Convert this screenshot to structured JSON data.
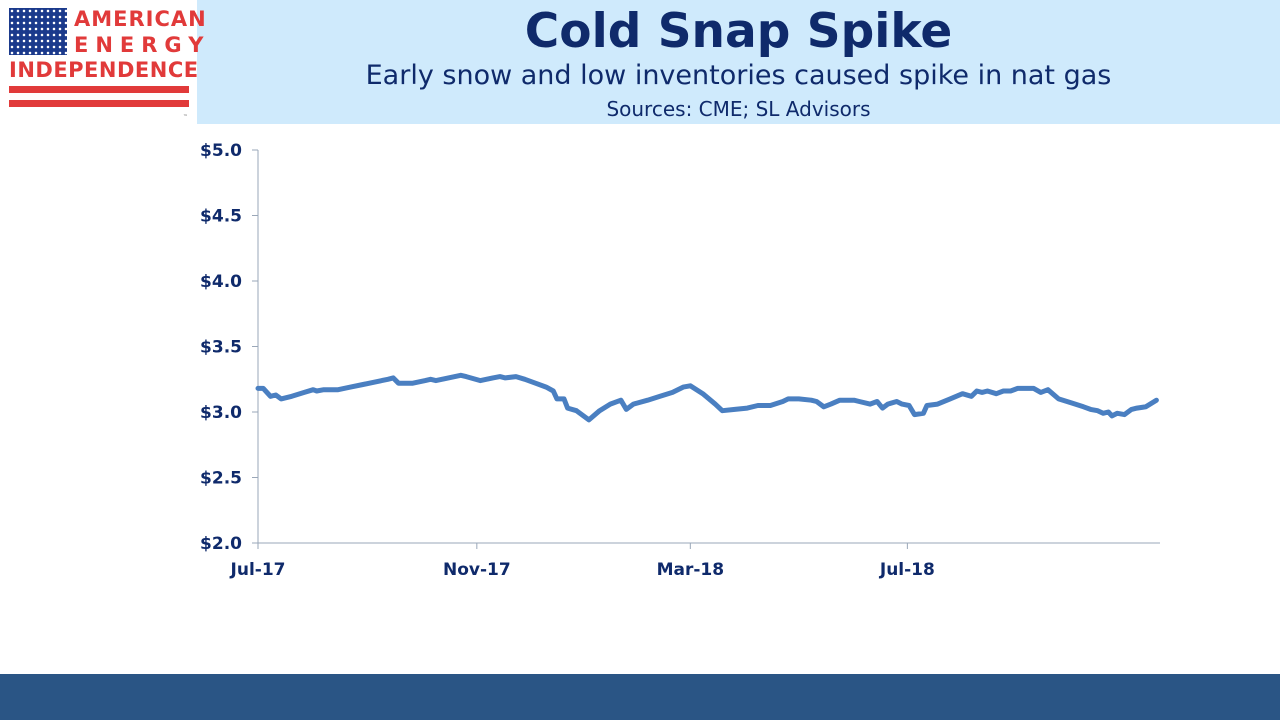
{
  "logo": {
    "line1": "AMERICAN",
    "line2": "ENERGY",
    "line3": "INDEPENDENCE",
    "tm": "™",
    "colors": {
      "red": "#e13a3a",
      "blue": "#1b3a8c"
    }
  },
  "header": {
    "title": "Cold Snap Spike",
    "subtitle": "Early snow and low inventories caused spike in nat gas",
    "sources": "Sources: CME; SL Advisors"
  },
  "chart_data": {
    "type": "line",
    "title": "Cold Snap Spike",
    "subtitle": "Early snow and low inventories caused spike in nat gas",
    "xlabel": "",
    "ylabel": "",
    "ylim": [
      2.0,
      5.0
    ],
    "yticks": [
      2.0,
      2.5,
      3.0,
      3.5,
      4.0,
      4.5,
      5.0
    ],
    "ytick_labels": [
      "$2.0",
      "$2.5",
      "$3.0",
      "$3.5",
      "$4.0",
      "$4.5",
      "$5.0"
    ],
    "xlim": [
      "2017-07-01",
      "2018-11-20"
    ],
    "xticks": [
      "2017-07-01",
      "2017-11-01",
      "2018-03-01",
      "2018-07-01"
    ],
    "xtick_labels": [
      "Jul-17",
      "Nov-17",
      "Mar-18",
      "Jul-18"
    ],
    "grid": false,
    "line_color": "#4a7fc1",
    "series": [
      {
        "name": "",
        "points": [
          [
            "2017-07-01",
            3.18
          ],
          [
            "2017-07-04",
            3.18
          ],
          [
            "2017-07-08",
            3.12
          ],
          [
            "2017-07-11",
            3.13
          ],
          [
            "2017-07-14",
            3.1
          ],
          [
            "2017-07-20",
            3.12
          ],
          [
            "2017-07-27",
            3.15
          ],
          [
            "2017-08-01",
            3.17
          ],
          [
            "2017-08-03",
            3.16
          ],
          [
            "2017-08-07",
            3.17
          ],
          [
            "2017-08-15",
            3.17
          ],
          [
            "2017-08-22",
            3.19
          ],
          [
            "2017-08-29",
            3.21
          ],
          [
            "2017-09-05",
            3.23
          ],
          [
            "2017-09-12",
            3.25
          ],
          [
            "2017-09-15",
            3.26
          ],
          [
            "2017-09-18",
            3.22
          ],
          [
            "2017-09-26",
            3.22
          ],
          [
            "2017-10-03",
            3.24
          ],
          [
            "2017-10-06",
            3.25
          ],
          [
            "2017-10-09",
            3.24
          ],
          [
            "2017-10-16",
            3.26
          ],
          [
            "2017-10-23",
            3.28
          ],
          [
            "2017-10-26",
            3.27
          ],
          [
            "2017-11-03",
            3.24
          ],
          [
            "2017-11-10",
            3.26
          ],
          [
            "2017-11-14",
            3.27
          ],
          [
            "2017-11-17",
            3.26
          ],
          [
            "2017-11-23",
            3.27
          ],
          [
            "2017-11-28",
            3.25
          ],
          [
            "2017-12-04",
            3.22
          ],
          [
            "2017-12-10",
            3.19
          ],
          [
            "2017-12-14",
            3.16
          ],
          [
            "2017-12-16",
            3.1
          ],
          [
            "2017-12-20",
            3.1
          ],
          [
            "2017-12-22",
            3.03
          ],
          [
            "2017-12-27",
            3.01
          ],
          [
            "2018-01-03",
            2.94
          ],
          [
            "2018-01-09",
            3.01
          ],
          [
            "2018-01-15",
            3.06
          ],
          [
            "2018-01-21",
            3.09
          ],
          [
            "2018-01-24",
            3.02
          ],
          [
            "2018-01-28",
            3.06
          ],
          [
            "2018-02-05",
            3.09
          ],
          [
            "2018-02-12",
            3.12
          ],
          [
            "2018-02-19",
            3.15
          ],
          [
            "2018-02-25",
            3.19
          ],
          [
            "2018-03-01",
            3.2
          ],
          [
            "2018-03-08",
            3.14
          ],
          [
            "2018-03-15",
            3.06
          ],
          [
            "2018-03-19",
            3.01
          ],
          [
            "2018-03-26",
            3.02
          ],
          [
            "2018-04-02",
            3.03
          ],
          [
            "2018-04-08",
            3.05
          ],
          [
            "2018-04-15",
            3.05
          ],
          [
            "2018-04-22",
            3.08
          ],
          [
            "2018-04-25",
            3.1
          ],
          [
            "2018-05-01",
            3.1
          ],
          [
            "2018-05-08",
            3.09
          ],
          [
            "2018-05-11",
            3.08
          ],
          [
            "2018-05-15",
            3.04
          ],
          [
            "2018-05-19",
            3.06
          ],
          [
            "2018-05-24",
            3.09
          ],
          [
            "2018-06-01",
            3.09
          ],
          [
            "2018-06-04",
            3.08
          ],
          [
            "2018-06-10",
            3.06
          ],
          [
            "2018-06-14",
            3.08
          ],
          [
            "2018-06-17",
            3.03
          ],
          [
            "2018-06-20",
            3.06
          ],
          [
            "2018-06-25",
            3.08
          ],
          [
            "2018-06-28",
            3.06
          ],
          [
            "2018-07-02",
            3.05
          ],
          [
            "2018-07-05",
            2.98
          ],
          [
            "2018-07-10",
            2.99
          ],
          [
            "2018-07-12",
            3.05
          ],
          [
            "2018-07-18",
            3.06
          ],
          [
            "2018-07-25",
            3.1
          ],
          [
            "2018-08-01",
            3.14
          ],
          [
            "2018-08-06",
            3.12
          ],
          [
            "2018-08-09",
            3.16
          ],
          [
            "2018-08-12",
            3.15
          ],
          [
            "2018-08-15",
            3.16
          ],
          [
            "2018-08-20",
            3.14
          ],
          [
            "2018-08-24",
            3.16
          ],
          [
            "2018-08-28",
            3.16
          ],
          [
            "2018-09-01",
            3.18
          ],
          [
            "2018-09-05",
            3.18
          ],
          [
            "2018-09-10",
            3.18
          ],
          [
            "2018-09-14",
            3.15
          ],
          [
            "2018-09-18",
            3.17
          ],
          [
            "2018-09-24",
            3.1
          ],
          [
            "2018-10-01",
            3.07
          ],
          [
            "2018-10-08",
            3.04
          ],
          [
            "2018-10-12",
            3.02
          ],
          [
            "2018-10-16",
            3.01
          ],
          [
            "2018-10-19",
            2.99
          ],
          [
            "2018-10-22",
            3.0
          ],
          [
            "2018-10-24",
            2.97
          ],
          [
            "2018-10-27",
            2.99
          ],
          [
            "2018-10-31",
            2.98
          ],
          [
            "2018-11-04",
            3.02
          ],
          [
            "2018-11-07",
            3.03
          ],
          [
            "2018-11-12",
            3.04
          ],
          [
            "2018-11-18",
            3.09
          ]
        ]
      }
    ]
  }
}
